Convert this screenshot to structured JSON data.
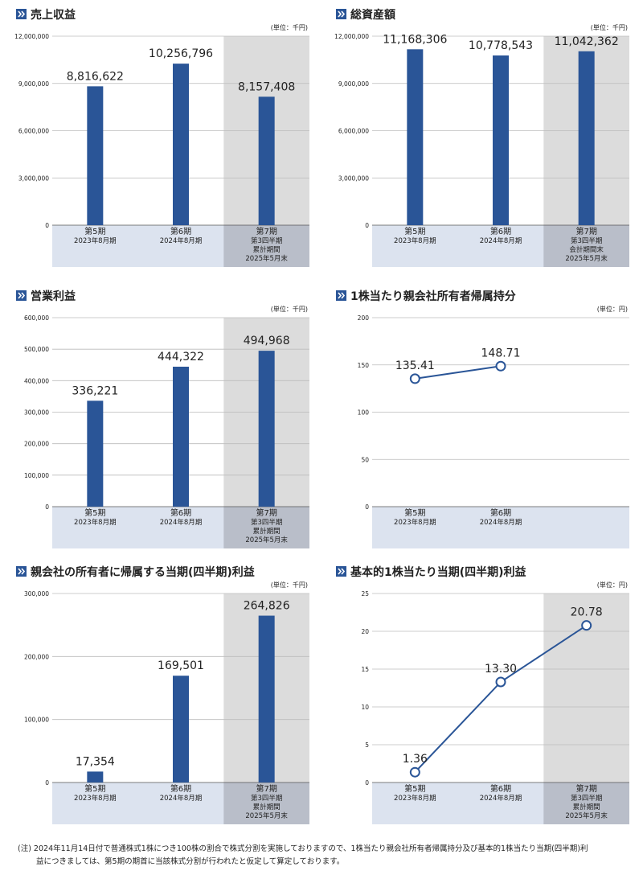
{
  "chart_data": [
    {
      "type": "bar",
      "title": "売上収益",
      "unit": "(単位：千円)",
      "color": "#2a5597",
      "highlight_category": 2,
      "categories": [
        [
          "第5期",
          "2023年8月期"
        ],
        [
          "第6期",
          "2024年8月期"
        ],
        [
          "第7期",
          "第3四半期",
          "累計期間",
          "2025年5月末"
        ]
      ],
      "values": [
        8816622,
        10256796,
        8157408
      ],
      "value_labels": [
        "8,816,622",
        "10,256,796",
        "8,157,408"
      ],
      "ylim": [
        0,
        12000000
      ],
      "yticks": [
        0,
        {
          "value": 3000000,
          "label": "3,000,000"
        },
        {
          "value": 6000000,
          "label": "6,000,000"
        },
        {
          "value": 9000000,
          "label": "9,000,000"
        },
        {
          "value": 12000000,
          "label": "12,000,000"
        }
      ],
      "grid": true
    },
    {
      "type": "bar",
      "title": "総資産額",
      "unit": "(単位：千円)",
      "color": "#2a5597",
      "highlight_category": 2,
      "categories": [
        [
          "第5期",
          "2023年8月期"
        ],
        [
          "第6期",
          "2024年8月期"
        ],
        [
          "第7期",
          "第3四半期",
          "会計期間末",
          "2025年5月末"
        ]
      ],
      "values": [
        11168306,
        10778543,
        11042362
      ],
      "value_labels": [
        "11,168,306",
        "10,778,543",
        "11,042,362"
      ],
      "ylim": [
        0,
        12000000
      ],
      "yticks": [
        0,
        {
          "value": 3000000,
          "label": "3,000,000"
        },
        {
          "value": 6000000,
          "label": "6,000,000"
        },
        {
          "value": 9000000,
          "label": "9,000,000"
        },
        {
          "value": 12000000,
          "label": "12,000,000"
        }
      ],
      "grid": true
    },
    {
      "type": "bar",
      "title": "営業利益",
      "unit": "(単位：千円)",
      "color": "#2a5597",
      "highlight_category": 2,
      "categories": [
        [
          "第5期",
          "2023年8月期"
        ],
        [
          "第6期",
          "2024年8月期"
        ],
        [
          "第7期",
          "第3四半期",
          "累計期間",
          "2025年5月末"
        ]
      ],
      "values": [
        336221,
        444322,
        494968
      ],
      "value_labels": [
        "336,221",
        "444,322",
        "494,968"
      ],
      "ylim": [
        0,
        600000
      ],
      "yticks": [
        0,
        {
          "value": 100000,
          "label": "100,000"
        },
        {
          "value": 200000,
          "label": "200,000"
        },
        {
          "value": 300000,
          "label": "300,000"
        },
        {
          "value": 400000,
          "label": "400,000"
        },
        {
          "value": 500000,
          "label": "500,000"
        },
        {
          "value": 600000,
          "label": "600,000"
        }
      ],
      "grid": true
    },
    {
      "type": "line",
      "title": "1株当たり親会社所有者帰属持分",
      "unit": "(単位：円)",
      "color": "#2a5597",
      "categories": [
        [
          "第5期",
          "2023年8月期"
        ],
        [
          "第6期",
          "2024年8月期"
        ],
        null
      ],
      "values": [
        135.41,
        148.71,
        null
      ],
      "value_labels": [
        "135.41",
        "148.71",
        null
      ],
      "ylim": [
        0,
        200
      ],
      "yticks": [
        0,
        50,
        100,
        150,
        200
      ],
      "grid": true
    },
    {
      "type": "bar",
      "title": "親会社の所有者に帰属する当期(四半期)利益",
      "unit": "(単位：千円)",
      "color": "#2a5597",
      "highlight_category": 2,
      "categories": [
        [
          "第5期",
          "2023年8月期"
        ],
        [
          "第6期",
          "2024年8月期"
        ],
        [
          "第7期",
          "第3四半期",
          "累計期間",
          "2025年5月末"
        ]
      ],
      "values": [
        17354,
        169501,
        264826
      ],
      "value_labels": [
        "17,354",
        "169,501",
        "264,826"
      ],
      "ylim": [
        0,
        300000
      ],
      "yticks": [
        0,
        {
          "value": 100000,
          "label": "100,000"
        },
        {
          "value": 200000,
          "label": "200,000"
        },
        {
          "value": 300000,
          "label": "300,000"
        }
      ],
      "grid": true
    },
    {
      "type": "line",
      "title": "基本的1株当たり当期(四半期)利益",
      "unit": "(単位：円)",
      "color": "#2a5597",
      "highlight_category": 2,
      "categories": [
        [
          "第5期",
          "2023年8月期"
        ],
        [
          "第6期",
          "2024年8月期"
        ],
        [
          "第7期",
          "第3四半期",
          "累計期間",
          "2025年5月末"
        ]
      ],
      "values": [
        1.36,
        13.3,
        20.78
      ],
      "value_labels": [
        "1.36",
        "13.30",
        "20.78"
      ],
      "ylim": [
        0,
        25
      ],
      "yticks": [
        0,
        5,
        10,
        15,
        20,
        25
      ],
      "grid": true
    }
  ],
  "footnote": [
    "(注) 2024年11月14日付で普通株式1株につき100株の割合で株式分割を実施しておりますので、1株当たり親会社所有者帰属持分及び基本的1株当たり当期(四半期)利",
    "益につきましては、第5期の期首に当該株式分割が行われたと仮定して算定しております。"
  ]
}
